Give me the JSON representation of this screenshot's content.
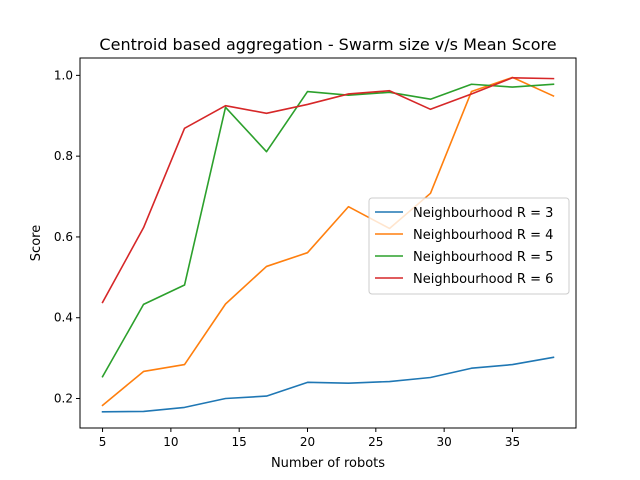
{
  "chart_data": {
    "type": "line",
    "title": "Centroid based aggregation - Swarm size v/s Mean Score",
    "xlabel": "Number of robots",
    "ylabel": "Score",
    "x": [
      5,
      8,
      11,
      14,
      17,
      20,
      23,
      26,
      29,
      32,
      35,
      38
    ],
    "xlim": [
      3.35,
      39.65
    ],
    "ylim": [
      0.127,
      1.043
    ],
    "xticks": [
      5,
      10,
      15,
      20,
      25,
      30,
      35
    ],
    "yticks": [
      0.2,
      0.4,
      0.6,
      0.8,
      1.0
    ],
    "ytick_labels": [
      "0.2",
      "0.4",
      "0.6",
      "0.8",
      "1.0"
    ],
    "grid": false,
    "legend_position": "center-right",
    "series": [
      {
        "name": "Neighbourhood R = 3",
        "color": "#1f77b4",
        "values": [
          0.167,
          0.168,
          0.178,
          0.2,
          0.206,
          0.24,
          0.238,
          0.242,
          0.252,
          0.275,
          0.284,
          0.302
        ]
      },
      {
        "name": "Neighbourhood R = 4",
        "color": "#ff7f0e",
        "values": [
          0.183,
          0.267,
          0.284,
          0.434,
          0.527,
          0.561,
          0.675,
          0.621,
          0.708,
          0.96,
          0.995,
          0.949
        ]
      },
      {
        "name": "Neighbourhood R = 5",
        "color": "#2ca02c",
        "values": [
          0.254,
          0.433,
          0.481,
          0.921,
          0.811,
          0.96,
          0.951,
          0.958,
          0.941,
          0.978,
          0.971,
          0.978
        ]
      },
      {
        "name": "Neighbourhood R = 6",
        "color": "#d62728",
        "values": [
          0.438,
          0.623,
          0.869,
          0.925,
          0.906,
          0.928,
          0.954,
          0.962,
          0.916,
          0.954,
          0.994,
          0.992
        ]
      }
    ]
  }
}
